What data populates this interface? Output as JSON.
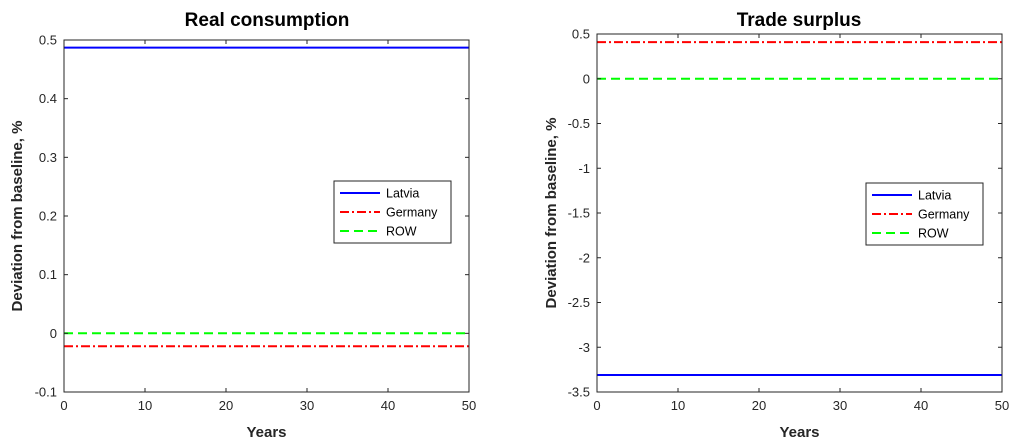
{
  "chart_data": [
    {
      "type": "line",
      "title": "Real consumption",
      "xlabel": "Years",
      "ylabel": "Deviation from baseline, %",
      "xlim": [
        0,
        50
      ],
      "ylim": [
        -0.1,
        0.5
      ],
      "xticks": [
        0,
        10,
        20,
        30,
        40,
        50
      ],
      "yticks": [
        -0.1,
        0,
        0.1,
        0.2,
        0.3,
        0.4,
        0.5
      ],
      "grid": false,
      "legend_position": "right",
      "x": [
        0,
        50
      ],
      "series": [
        {
          "name": "Latvia",
          "color": "#0000ff",
          "style": "solid",
          "values": [
            0.487,
            0.487
          ]
        },
        {
          "name": "Germany",
          "color": "#ff0000",
          "style": "dashdot",
          "values": [
            -0.022,
            -0.022
          ]
        },
        {
          "name": "ROW",
          "color": "#00ff00",
          "style": "dashed",
          "values": [
            0.0,
            0.0
          ]
        }
      ]
    },
    {
      "type": "line",
      "title": "Trade surplus",
      "xlabel": "Years",
      "ylabel": "Deviation from baseline, %",
      "xlim": [
        0,
        50
      ],
      "ylim": [
        -3.5,
        0.5
      ],
      "xticks": [
        0,
        10,
        20,
        30,
        40,
        50
      ],
      "yticks": [
        -3.5,
        -3,
        -2.5,
        -2,
        -1.5,
        -1,
        -0.5,
        0,
        0.5
      ],
      "grid": false,
      "legend_position": "right",
      "x": [
        0,
        50
      ],
      "series": [
        {
          "name": "Latvia",
          "color": "#0000ff",
          "style": "solid",
          "values": [
            -3.31,
            -3.31
          ]
        },
        {
          "name": "Germany",
          "color": "#ff0000",
          "style": "dashdot",
          "values": [
            0.41,
            0.41
          ]
        },
        {
          "name": "ROW",
          "color": "#00ff00",
          "style": "dashed",
          "values": [
            0.0,
            0.0
          ]
        }
      ]
    }
  ]
}
